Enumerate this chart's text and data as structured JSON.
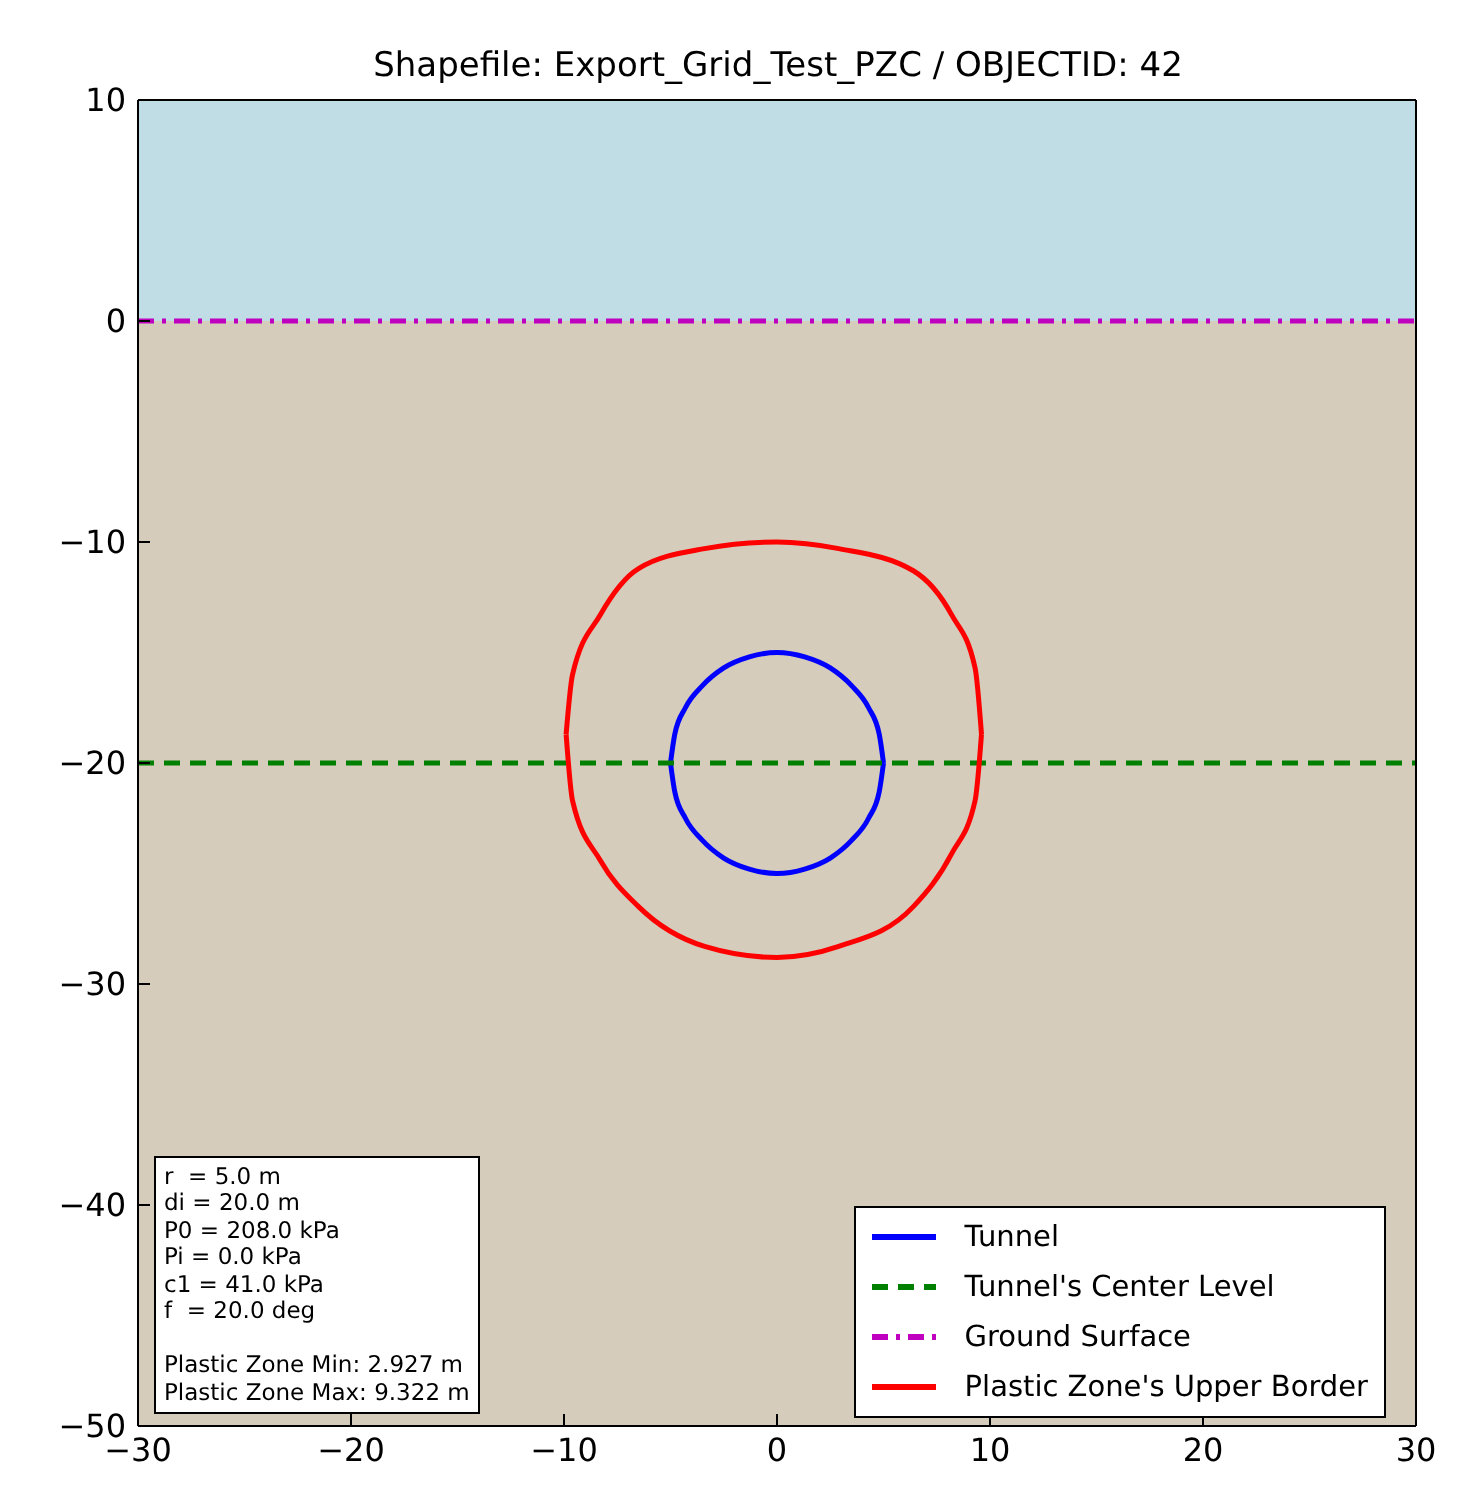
{
  "chart_data": {
    "type": "line",
    "title": "Shapefile: Export_Grid_Test_PZC / OBJECTID: 42",
    "xlim": [
      -30,
      30
    ],
    "xticks": [
      -30,
      -20,
      -10,
      0,
      10,
      20,
      30
    ],
    "ylim": [
      -50,
      10
    ],
    "yticks": [
      -50,
      -40,
      -30,
      -20,
      -10,
      0,
      10
    ],
    "legend": "bottom right",
    "marker": "none",
    "bands": [
      {
        "axis": "y",
        "from": 0,
        "to": 10,
        "color": "#c0dde6"
      },
      {
        "axis": "y",
        "from": -50,
        "to": 0,
        "color": "#d5ccbb"
      }
    ],
    "annotations": [
      "r  = 5.0 m\ndi = 20.0 m\nP0 = 208.0 kPa\nPi = 0.0 kPa\nc1 = 41.0 kPa\nf  = 20.0 deg\n\nPlastic Zone Min: 2.927 m\nPlastic Zone Max: 9.322 m"
    ],
    "series": [
      {
        "name": "Tunnel",
        "color": "#0000ff",
        "line_style": "solid",
        "x": [
          -5,
          -4.8,
          -4.3,
          -3.5,
          -2.5,
          -1.3,
          0,
          1.3,
          2.5,
          3.5,
          4.3,
          4.8,
          5,
          null,
          -5,
          -4.8,
          -4.3,
          -3.5,
          -2.5,
          -1.3,
          0,
          1.3,
          2.5,
          3.5,
          4.3,
          4.8,
          5
        ],
        "values": [
          -20,
          -18.7,
          -17.5,
          -16.5,
          -15.7,
          -15.2,
          -15,
          -15.2,
          -15.7,
          -16.5,
          -17.5,
          -18.7,
          -20,
          null,
          -20,
          -21.3,
          -22.5,
          -23.5,
          -24.3,
          -24.8,
          -25,
          -24.8,
          -24.3,
          -23.5,
          -22.5,
          -21.3,
          -20
        ]
      },
      {
        "name": "Tunnel's Center Level",
        "color": "#008000",
        "line_style": "dashed",
        "x": [
          -30,
          30
        ],
        "values": [
          -20,
          -20
        ]
      },
      {
        "name": "Ground Surface",
        "color": "#bf00bf",
        "line_style": "dashdot",
        "x": [
          -30,
          30
        ],
        "values": [
          0,
          0
        ]
      },
      {
        "name": "Plastic Zone's Upper Border",
        "color": "#ff0000",
        "line_style": "solid",
        "x": [
          -9.9,
          -9.6,
          -8.3,
          -6.5,
          -3.4,
          0,
          2.9,
          6.4,
          8.2,
          9.3,
          9.6,
          null,
          -9.9,
          -9.6,
          -8.3,
          -6.5,
          -3.4,
          0,
          2.9,
          6.4,
          8.2,
          9.3,
          9.6
        ],
        "values": [
          -18.7,
          -16,
          -13.3,
          -11.2,
          -10.3,
          -10,
          -10.3,
          -11.3,
          -13.3,
          -15.7,
          -18.7,
          null,
          -18.7,
          -21.7,
          -24.4,
          -26.5,
          -28.3,
          -28.8,
          -28.3,
          -26.5,
          -24.1,
          -21.7,
          -18.7
        ]
      }
    ]
  }
}
